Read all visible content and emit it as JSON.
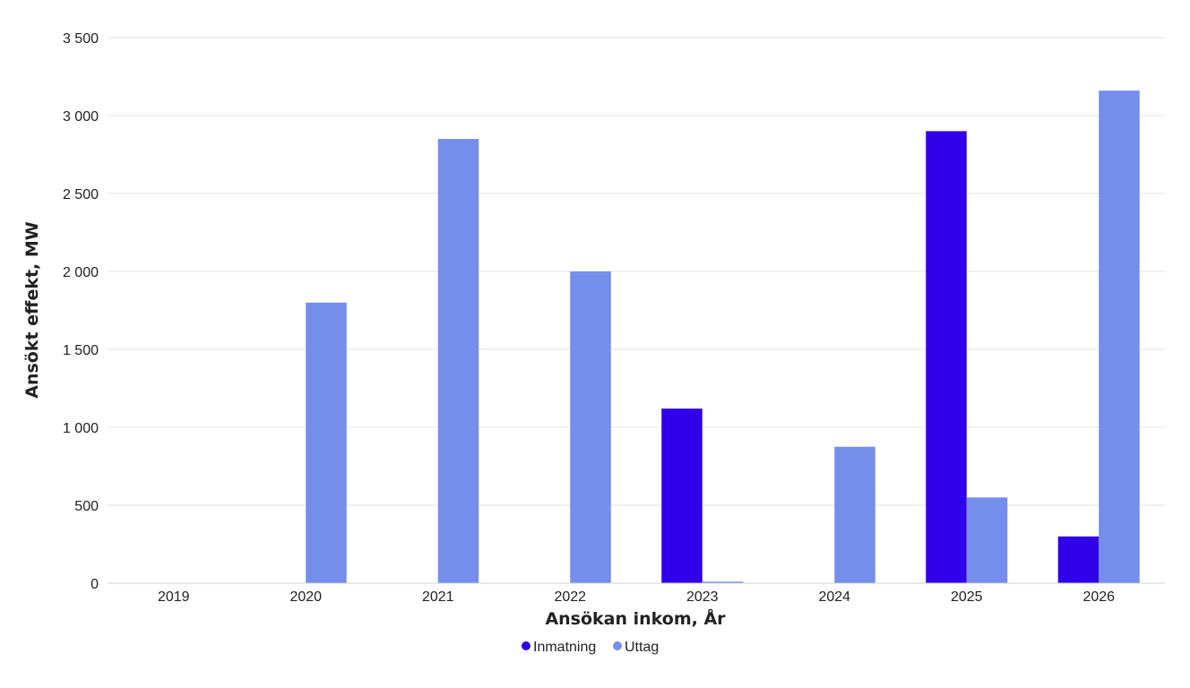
{
  "chart_data": {
    "type": "bar",
    "title": "",
    "xlabel": "Ansökan inkom, År",
    "ylabel": "Ansökt effekt, MW",
    "categories": [
      "2019",
      "2020",
      "2021",
      "2022",
      "2023",
      "2024",
      "2025",
      "2026"
    ],
    "ylim": [
      0,
      3500
    ],
    "yticks": [
      0,
      500,
      1000,
      1500,
      2000,
      2500,
      3000,
      3500
    ],
    "ytick_labels": [
      "0",
      "500",
      "1 000",
      "1 500",
      "2 000",
      "2 500",
      "3 000",
      "3 500"
    ],
    "grid": true,
    "legend_position": "bottom-center",
    "series": [
      {
        "name": "Inmatning",
        "color": "#3000E8",
        "values": [
          0,
          0,
          0,
          0,
          1120,
          0,
          2900,
          300
        ]
      },
      {
        "name": "Uttag",
        "color": "#758EEC",
        "values": [
          0,
          1800,
          2850,
          2000,
          10,
          875,
          550,
          3160
        ]
      }
    ]
  }
}
